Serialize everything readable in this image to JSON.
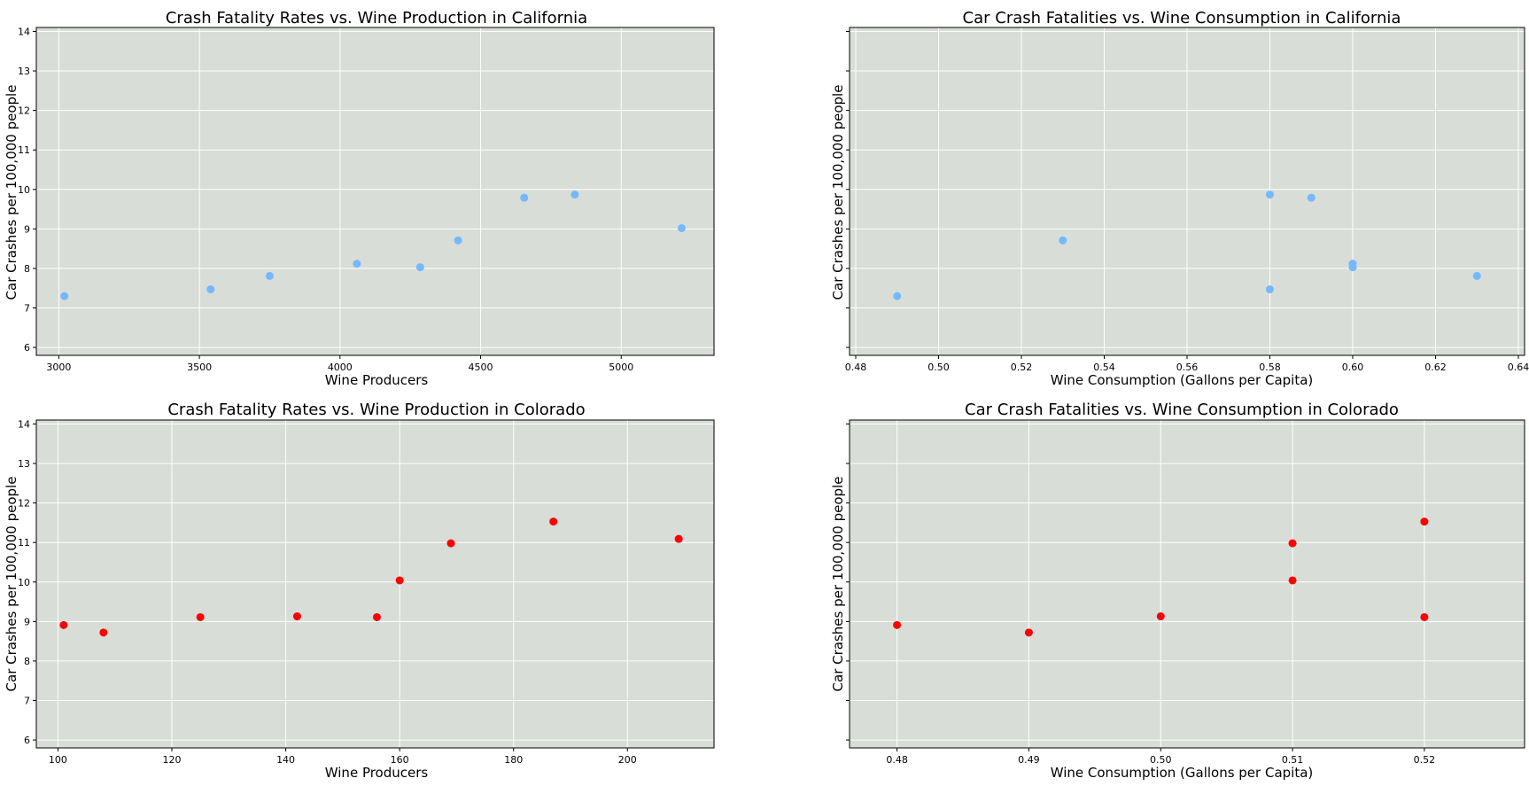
{
  "colors": {
    "plot_background": "#d8ddd7",
    "grid": "#ffffff",
    "california_points": "#74b9ff",
    "colorado_points": "#ff0000"
  },
  "chart_data": [
    {
      "type": "scatter",
      "title": "Crash Fatality Rates vs. Wine Production in California",
      "xlabel": "Wine Producers",
      "ylabel": "Car Crashes per 100,000 people",
      "xlim": [
        2920,
        5330
      ],
      "ylim": [
        5.8,
        14.1
      ],
      "xticks": [
        3000,
        3500,
        4000,
        4500,
        5000
      ],
      "xtick_labels": [
        "3000",
        "3500",
        "4000",
        "4500",
        "5000"
      ],
      "yticks": [
        6,
        7,
        8,
        9,
        10,
        11,
        12,
        13,
        14
      ],
      "ytick_labels": [
        "6",
        "7",
        "8",
        "9",
        "10",
        "11",
        "12",
        "13",
        "14"
      ],
      "grid": true,
      "color": "#74b9ff",
      "points": [
        {
          "x": 3020,
          "y": 7.3
        },
        {
          "x": 3540,
          "y": 7.47
        },
        {
          "x": 3750,
          "y": 7.81
        },
        {
          "x": 4060,
          "y": 8.12
        },
        {
          "x": 4285,
          "y": 8.03
        },
        {
          "x": 4420,
          "y": 8.71
        },
        {
          "x": 4655,
          "y": 9.79
        },
        {
          "x": 4835,
          "y": 9.87
        },
        {
          "x": 5215,
          "y": 9.02
        }
      ]
    },
    {
      "type": "scatter",
      "title": "Car Crash Fatalities vs. Wine Consumption in California",
      "xlabel": "Wine Consumption (Gallons per Capita)",
      "ylabel": "Car Crashes per 100,000 people",
      "xlim": [
        0.4785,
        0.6415
      ],
      "ylim": [
        5.8,
        14.1
      ],
      "xticks": [
        0.48,
        0.5,
        0.52,
        0.54,
        0.56,
        0.58,
        0.6,
        0.62,
        0.64
      ],
      "xtick_labels": [
        "0.48",
        "0.50",
        "0.52",
        "0.54",
        "0.56",
        "0.58",
        "0.60",
        "0.62",
        "0.64"
      ],
      "yticks": [
        6,
        7,
        8,
        9,
        10,
        11,
        12,
        13,
        14
      ],
      "ytick_labels": [],
      "grid": true,
      "color": "#74b9ff",
      "points": [
        {
          "x": 0.49,
          "y": 7.3
        },
        {
          "x": 0.53,
          "y": 8.71
        },
        {
          "x": 0.58,
          "y": 9.87
        },
        {
          "x": 0.58,
          "y": 7.47
        },
        {
          "x": 0.59,
          "y": 9.79
        },
        {
          "x": 0.6,
          "y": 8.12
        },
        {
          "x": 0.6,
          "y": 8.03
        },
        {
          "x": 0.63,
          "y": 7.81
        }
      ]
    },
    {
      "type": "scatter",
      "title": "Crash Fatality Rates vs. Wine Production in Colorado",
      "xlabel": "Wine Producers",
      "ylabel": "Car Crashes per 100,000 people",
      "xlim": [
        96.2,
        215.2
      ],
      "ylim": [
        5.8,
        14.1
      ],
      "xticks": [
        100,
        120,
        140,
        160,
        180,
        200
      ],
      "xtick_labels": [
        "100",
        "120",
        "140",
        "160",
        "180",
        "200"
      ],
      "yticks": [
        6,
        7,
        8,
        9,
        10,
        11,
        12,
        13,
        14
      ],
      "ytick_labels": [
        "6",
        "7",
        "8",
        "9",
        "10",
        "11",
        "12",
        "13",
        "14"
      ],
      "grid": true,
      "color": "#ff0000",
      "points": [
        {
          "x": 101,
          "y": 8.91
        },
        {
          "x": 108,
          "y": 8.72
        },
        {
          "x": 125,
          "y": 9.11
        },
        {
          "x": 142,
          "y": 9.13
        },
        {
          "x": 156,
          "y": 9.11
        },
        {
          "x": 160,
          "y": 10.04
        },
        {
          "x": 169,
          "y": 10.98
        },
        {
          "x": 187,
          "y": 11.53
        },
        {
          "x": 209,
          "y": 11.09
        }
      ]
    },
    {
      "type": "scatter",
      "title": "Car Crash Fatalities vs. Wine Consumption in Colorado",
      "xlabel": "Wine Consumption (Gallons per Capita)",
      "ylabel": "Car Crashes per 100,000 people",
      "xlim": [
        0.4764,
        0.5276
      ],
      "ylim": [
        5.8,
        14.1
      ],
      "xticks": [
        0.48,
        0.49,
        0.5,
        0.51,
        0.52
      ],
      "xtick_labels": [
        "0.48",
        "0.49",
        "0.50",
        "0.51",
        "0.52"
      ],
      "yticks": [
        6,
        7,
        8,
        9,
        10,
        11,
        12,
        13,
        14
      ],
      "ytick_labels": [],
      "grid": true,
      "color": "#ff0000",
      "points": [
        {
          "x": 0.48,
          "y": 8.91
        },
        {
          "x": 0.49,
          "y": 8.72
        },
        {
          "x": 0.5,
          "y": 9.13
        },
        {
          "x": 0.51,
          "y": 10.98
        },
        {
          "x": 0.51,
          "y": 10.04
        },
        {
          "x": 0.52,
          "y": 11.53
        },
        {
          "x": 0.52,
          "y": 9.11
        }
      ]
    }
  ]
}
